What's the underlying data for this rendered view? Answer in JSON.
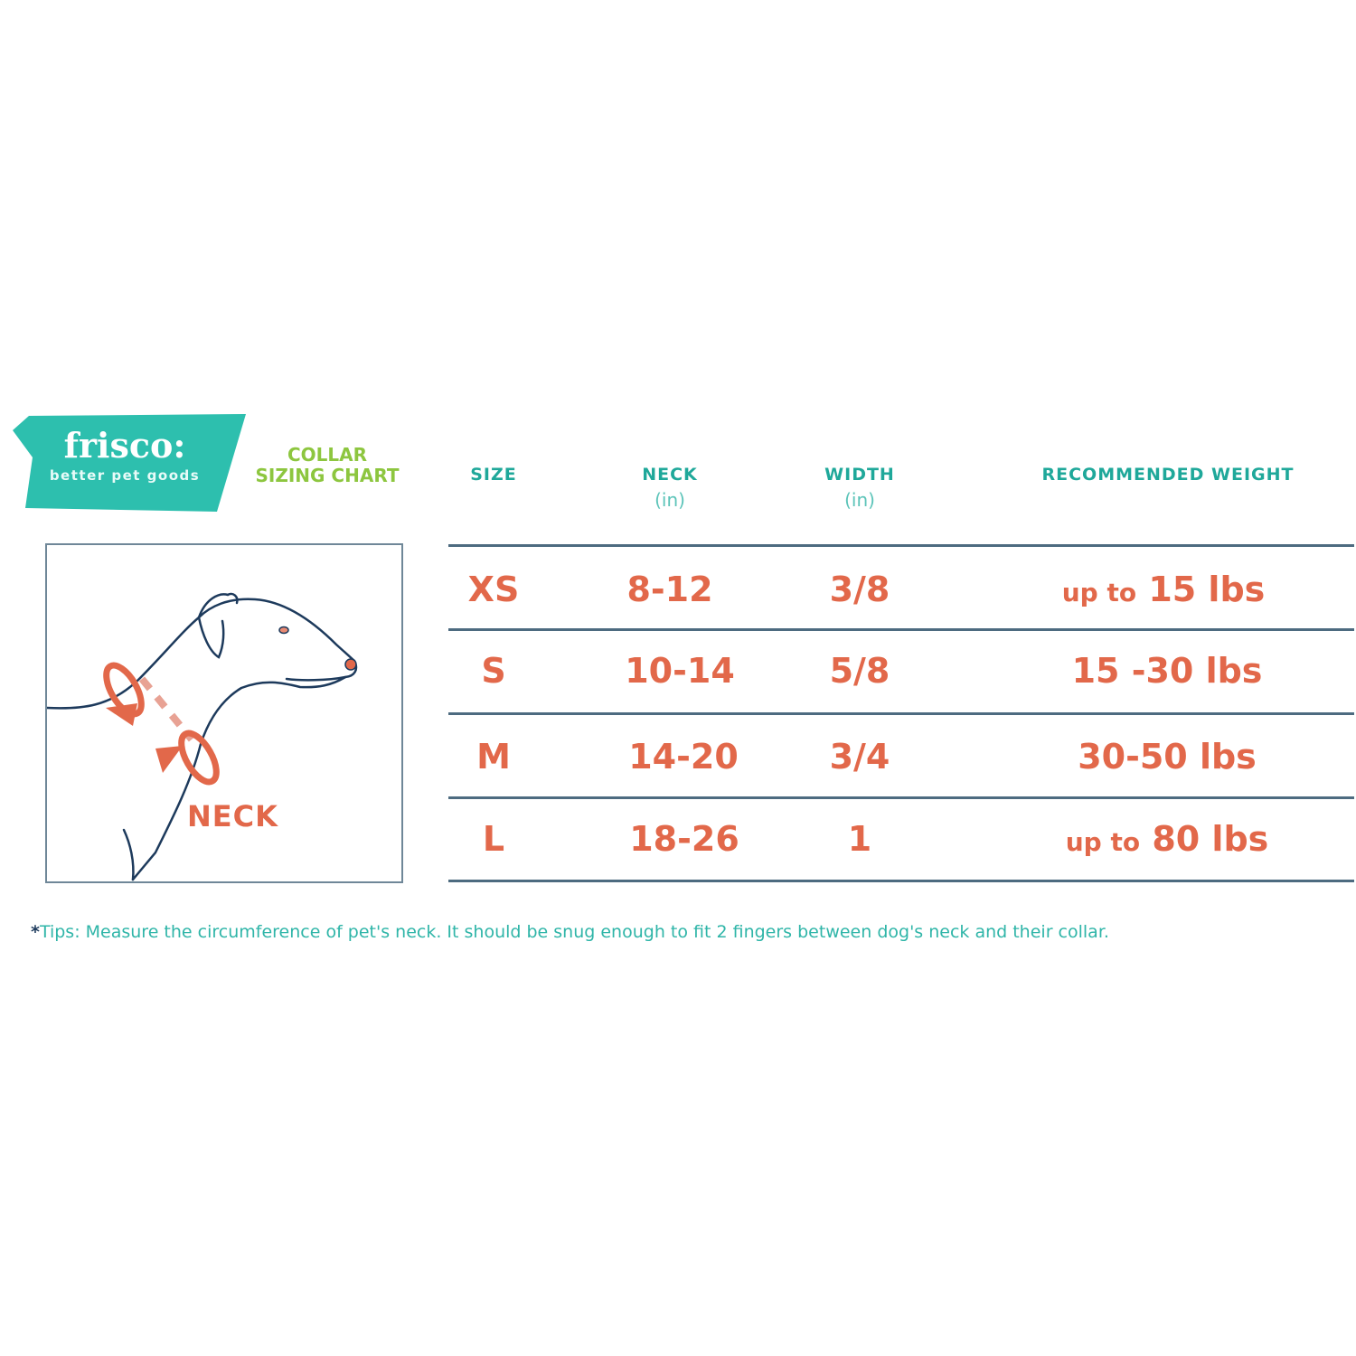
{
  "brand": {
    "name": "frisco:",
    "tagline": "better pet goods",
    "color": "#2dbfae"
  },
  "title": {
    "line1": "COLLAR",
    "line2": "SIZING CHART",
    "color": "#8dc63f"
  },
  "illustration": {
    "label": "NECK",
    "icon": "dog-neck-measure-illustration"
  },
  "table": {
    "headers": [
      {
        "label": "SIZE",
        "unit": ""
      },
      {
        "label": "NECK",
        "unit": "(in)"
      },
      {
        "label": "WIDTH",
        "unit": "(in)"
      },
      {
        "label": "RECOMMENDED WEIGHT",
        "unit": ""
      }
    ],
    "rows": [
      {
        "size": "XS",
        "neck": "8-12",
        "width": "3/8",
        "weight_prefix": "up to",
        "weight": "15 lbs"
      },
      {
        "size": "S",
        "neck": "10-14",
        "width": "5/8",
        "weight_prefix": "",
        "weight": "15 -30 lbs"
      },
      {
        "size": "M",
        "neck": "14-20",
        "width": "3/4",
        "weight_prefix": "",
        "weight": "30-50 lbs"
      },
      {
        "size": "L",
        "neck": "18-26",
        "width": "1",
        "weight_prefix": "up to",
        "weight": "80 lbs"
      }
    ],
    "header_color": "#1fa89a",
    "value_color": "#e2684a"
  },
  "tips": {
    "marker": "*",
    "text": "Tips: Measure the circumference of pet's neck. It should be snug enough to fit 2 fingers between dog's neck and their collar."
  }
}
